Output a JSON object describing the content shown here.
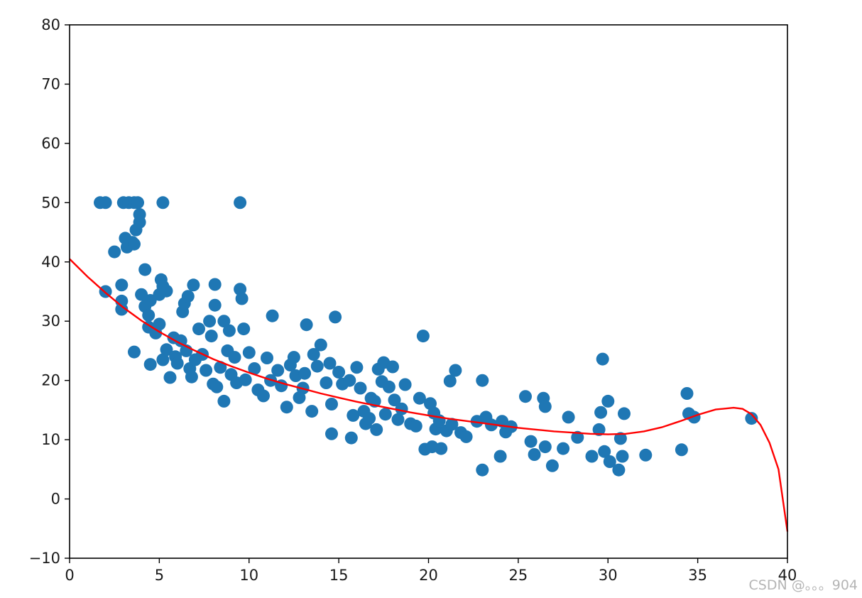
{
  "chart_data": {
    "type": "scatter",
    "title": "",
    "xlabel": "",
    "ylabel": "",
    "xlim": [
      0,
      40
    ],
    "ylim": [
      -10,
      80
    ],
    "x_ticks": [
      0,
      5,
      10,
      15,
      20,
      25,
      30,
      35,
      40
    ],
    "y_ticks": [
      -10,
      0,
      10,
      20,
      30,
      40,
      50,
      60,
      70,
      80
    ],
    "grid": false,
    "colors": {
      "points": "#1f77b4",
      "fit_line": "#ff0000",
      "axes": "#000000"
    },
    "series": [
      {
        "type": "scatter",
        "points": [
          [
            1.7,
            50
          ],
          [
            2.0,
            50
          ],
          [
            3.0,
            50
          ],
          [
            3.3,
            50
          ],
          [
            3.6,
            50
          ],
          [
            3.8,
            50
          ],
          [
            5.2,
            50
          ],
          [
            9.5,
            50
          ],
          [
            3.9,
            48
          ],
          [
            3.9,
            46.7
          ],
          [
            3.7,
            45.4
          ],
          [
            3.1,
            44
          ],
          [
            3.5,
            43.3
          ],
          [
            3.2,
            42.5
          ],
          [
            3.6,
            43
          ],
          [
            2.5,
            41.7
          ],
          [
            4.2,
            38.7
          ],
          [
            5.1,
            37
          ],
          [
            5.2,
            35.9
          ],
          [
            5.4,
            35.1
          ],
          [
            5.0,
            34.5
          ],
          [
            4.5,
            33.5
          ],
          [
            4.2,
            32.5
          ],
          [
            4.4,
            31
          ],
          [
            2.9,
            36.1
          ],
          [
            2.0,
            35
          ],
          [
            2.9,
            33.4
          ],
          [
            2.9,
            32
          ],
          [
            3.6,
            24.8
          ],
          [
            4.0,
            34.5
          ],
          [
            4.4,
            29
          ],
          [
            4.5,
            22.7
          ],
          [
            4.8,
            28
          ],
          [
            5.0,
            29.5
          ],
          [
            5.2,
            23.5
          ],
          [
            5.4,
            25.2
          ],
          [
            5.6,
            20.5
          ],
          [
            5.8,
            27.2
          ],
          [
            5.9,
            24
          ],
          [
            6.0,
            22.9
          ],
          [
            6.2,
            26.7
          ],
          [
            6.3,
            31.6
          ],
          [
            6.4,
            33
          ],
          [
            6.5,
            25
          ],
          [
            6.6,
            34.2
          ],
          [
            6.7,
            22
          ],
          [
            6.8,
            20.6
          ],
          [
            6.9,
            36.1
          ],
          [
            7.0,
            23.5
          ],
          [
            7.2,
            28.7
          ],
          [
            7.4,
            24.4
          ],
          [
            7.6,
            21.7
          ],
          [
            7.8,
            30
          ],
          [
            7.9,
            27.5
          ],
          [
            8.0,
            19.4
          ],
          [
            8.1,
            32.7
          ],
          [
            8.1,
            36.2
          ],
          [
            8.2,
            18.9
          ],
          [
            8.4,
            22.2
          ],
          [
            8.6,
            16.5
          ],
          [
            8.6,
            30
          ],
          [
            8.8,
            25
          ],
          [
            8.9,
            28.4
          ],
          [
            9.0,
            21
          ],
          [
            9.2,
            23.9
          ],
          [
            9.3,
            19.6
          ],
          [
            9.5,
            35.4
          ],
          [
            9.6,
            33.8
          ],
          [
            9.7,
            28.7
          ],
          [
            9.8,
            20.1
          ],
          [
            10.0,
            24.7
          ],
          [
            10.3,
            22
          ],
          [
            10.5,
            18.4
          ],
          [
            10.8,
            17.4
          ],
          [
            11.0,
            23.8
          ],
          [
            11.2,
            20
          ],
          [
            11.3,
            30.9
          ],
          [
            11.6,
            21.7
          ],
          [
            11.8,
            19.1
          ],
          [
            12.1,
            15.5
          ],
          [
            12.3,
            22.6
          ],
          [
            12.5,
            23.9
          ],
          [
            12.6,
            20.8
          ],
          [
            12.8,
            17.1
          ],
          [
            13.0,
            18.7
          ],
          [
            13.1,
            21.2
          ],
          [
            13.2,
            29.4
          ],
          [
            13.5,
            14.8
          ],
          [
            13.6,
            24.4
          ],
          [
            13.8,
            22.4
          ],
          [
            14.0,
            26
          ],
          [
            14.3,
            19.6
          ],
          [
            14.5,
            22.9
          ],
          [
            14.6,
            16
          ],
          [
            14.6,
            11
          ],
          [
            14.8,
            30.7
          ],
          [
            15.0,
            21.4
          ],
          [
            15.2,
            19.4
          ],
          [
            15.6,
            20
          ],
          [
            15.7,
            10.3
          ],
          [
            15.8,
            14.1
          ],
          [
            16.0,
            22.2
          ],
          [
            16.2,
            18.7
          ],
          [
            16.4,
            14.8
          ],
          [
            16.5,
            12.7
          ],
          [
            16.7,
            13.6
          ],
          [
            16.8,
            17
          ],
          [
            17.0,
            16.5
          ],
          [
            17.1,
            11.7
          ],
          [
            17.2,
            21.9
          ],
          [
            17.4,
            19.8
          ],
          [
            17.5,
            23
          ],
          [
            17.6,
            14.3
          ],
          [
            17.8,
            18.9
          ],
          [
            18.0,
            22.3
          ],
          [
            18.1,
            16.7
          ],
          [
            18.3,
            13.4
          ],
          [
            18.5,
            15.2
          ],
          [
            18.7,
            19.3
          ],
          [
            19.0,
            12.7
          ],
          [
            19.3,
            12.3
          ],
          [
            19.5,
            17
          ],
          [
            19.7,
            27.5
          ],
          [
            19.8,
            8.4
          ],
          [
            20.1,
            16.1
          ],
          [
            20.2,
            8.8
          ],
          [
            20.3,
            14.5
          ],
          [
            20.4,
            11.8
          ],
          [
            20.6,
            13.2
          ],
          [
            20.7,
            8.5
          ],
          [
            21.0,
            11.5
          ],
          [
            21.2,
            19.9
          ],
          [
            21.3,
            12.6
          ],
          [
            21.5,
            21.7
          ],
          [
            21.8,
            11.2
          ],
          [
            22.1,
            10.5
          ],
          [
            22.7,
            13.1
          ],
          [
            23.0,
            20
          ],
          [
            23.0,
            4.9
          ],
          [
            23.2,
            13.8
          ],
          [
            23.5,
            12.5
          ],
          [
            24.0,
            7.2
          ],
          [
            24.1,
            13.1
          ],
          [
            24.3,
            11.3
          ],
          [
            24.6,
            12.2
          ],
          [
            25.4,
            17.3
          ],
          [
            25.7,
            9.7
          ],
          [
            25.9,
            7.5
          ],
          [
            26.4,
            17
          ],
          [
            26.5,
            15.6
          ],
          [
            26.5,
            8.8
          ],
          [
            26.9,
            5.6
          ],
          [
            27.5,
            8.5
          ],
          [
            27.8,
            13.8
          ],
          [
            28.3,
            10.4
          ],
          [
            29.1,
            7.2
          ],
          [
            29.5,
            11.7
          ],
          [
            29.6,
            14.6
          ],
          [
            29.7,
            23.6
          ],
          [
            29.8,
            8
          ],
          [
            30.0,
            16.5
          ],
          [
            30.1,
            6.3
          ],
          [
            30.6,
            4.9
          ],
          [
            30.7,
            10.2
          ],
          [
            30.8,
            7.2
          ],
          [
            30.9,
            14.4
          ],
          [
            32.1,
            7.4
          ],
          [
            34.1,
            8.3
          ],
          [
            34.4,
            17.8
          ],
          [
            34.5,
            14.4
          ],
          [
            34.8,
            13.8
          ],
          [
            38.0,
            13.6
          ]
        ]
      },
      {
        "type": "line",
        "points": [
          [
            0,
            40.5
          ],
          [
            1,
            37.5
          ],
          [
            2,
            34.8
          ],
          [
            3,
            32.3
          ],
          [
            4,
            30.1
          ],
          [
            5,
            28.2
          ],
          [
            6,
            26.5
          ],
          [
            7,
            25.0
          ],
          [
            8,
            23.6
          ],
          [
            9,
            22.4
          ],
          [
            10,
            21.3
          ],
          [
            11,
            20.3
          ],
          [
            12,
            19.4
          ],
          [
            13,
            18.6
          ],
          [
            14,
            17.8
          ],
          [
            15,
            17.1
          ],
          [
            16,
            16.4
          ],
          [
            17,
            15.8
          ],
          [
            18,
            15.2
          ],
          [
            19,
            14.6
          ],
          [
            20,
            14.1
          ],
          [
            21,
            13.6
          ],
          [
            22,
            13.2
          ],
          [
            23,
            12.8
          ],
          [
            24,
            12.4
          ],
          [
            25,
            12.0
          ],
          [
            26,
            11.7
          ],
          [
            27,
            11.4
          ],
          [
            28,
            11.2
          ],
          [
            29,
            11.0
          ],
          [
            30,
            10.9
          ],
          [
            31,
            11.0
          ],
          [
            32,
            11.4
          ],
          [
            33,
            12.1
          ],
          [
            34,
            13.1
          ],
          [
            35,
            14.2
          ],
          [
            36,
            15.1
          ],
          [
            37,
            15.4
          ],
          [
            37.5,
            15.2
          ],
          [
            38,
            14.3
          ],
          [
            38.5,
            12.5
          ],
          [
            39,
            9.5
          ],
          [
            39.5,
            5.0
          ],
          [
            40,
            -5.5
          ]
        ]
      }
    ]
  },
  "watermark": "CSDN @。。。904"
}
